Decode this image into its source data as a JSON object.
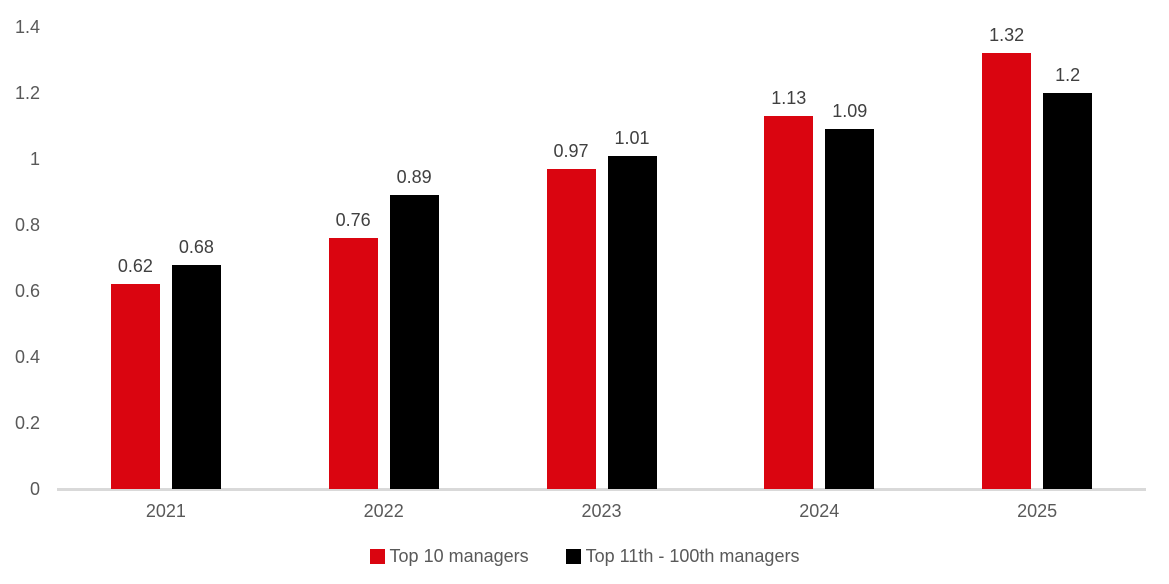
{
  "chart_data": {
    "type": "bar",
    "title": "",
    "xlabel": "",
    "ylabel": "",
    "categories": [
      "2021",
      "2022",
      "2023",
      "2024",
      "2025"
    ],
    "series": [
      {
        "name": "Top 10 managers",
        "color": "#da0510",
        "values": [
          0.62,
          0.76,
          0.97,
          1.13,
          1.32
        ],
        "labels": [
          "0.62",
          "0.76",
          "0.97",
          "1.13",
          "1.32"
        ]
      },
      {
        "name": "Top 11th - 100th managers",
        "color": "#000000",
        "values": [
          0.68,
          0.89,
          1.01,
          1.09,
          1.2
        ],
        "labels": [
          "0.68",
          "0.89",
          "1.01",
          "1.09",
          "1.2"
        ]
      }
    ],
    "ylim": [
      0,
      1.4
    ],
    "yticks": [
      0,
      0.2,
      0.4,
      0.6,
      0.8,
      1,
      1.2,
      1.4
    ],
    "ytick_labels": [
      "0",
      "0.2",
      "0.4",
      "0.6",
      "0.8",
      "1",
      "1.2",
      "1.4"
    ],
    "grid": false,
    "legend_position": "bottom"
  },
  "colors": {
    "axis_line": "#d9d9d9",
    "tick_text": "#595959",
    "data_label_text": "#404040",
    "legend_text": "#595959",
    "background": "#ffffff"
  }
}
